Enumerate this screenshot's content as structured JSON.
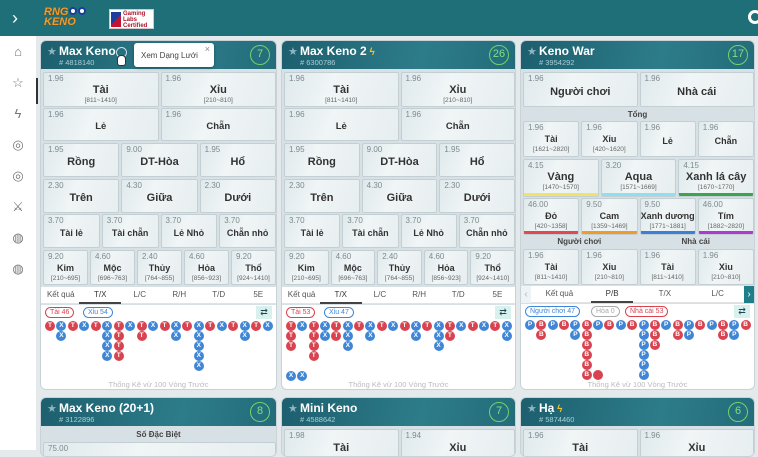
{
  "header": {
    "expand_icon": "chevron-right-icon",
    "logo_text": "RNG KENO",
    "cert_text": "Gaming Labs Certified"
  },
  "sidebar": {
    "items": [
      {
        "icon": "home-icon",
        "g": "⌂"
      },
      {
        "icon": "star-icon",
        "g": "☆"
      },
      {
        "icon": "bolt-icon",
        "g": "ϟ"
      },
      {
        "icon": "keno-20-icon",
        "g": "◎"
      },
      {
        "icon": "keno-40-icon",
        "g": "◎"
      },
      {
        "icon": "swords-icon",
        "g": "⚔"
      },
      {
        "icon": "keno-2-icon",
        "g": "◍"
      },
      {
        "icon": "keno-20plus-icon",
        "g": "◍"
      }
    ]
  },
  "tooltip": {
    "text": "Xem Dạng Lưới",
    "close": "×"
  },
  "colors": {
    "tai": "#d9434f",
    "xiu": "#3f86d6",
    "yellow": "#f0e26a",
    "aqua": "#8fe0ec",
    "green": "#3aa54a",
    "red": "#e04a4a",
    "orange": "#f09a2a",
    "blue": "#3a7fd8",
    "purple": "#b03ad0"
  },
  "cards": [
    {
      "title": "Max Keno",
      "id": "# 4818140",
      "timer": "7",
      "bolt": false,
      "rows": [
        [
          {
            "o": "1.96",
            "l": "Tài",
            "r": "[811~1410]"
          },
          {
            "o": "1.96",
            "l": "Xỉu",
            "r": "[210~810]"
          }
        ],
        [
          {
            "o": "1.96",
            "l": "Lẻ"
          },
          {
            "o": "1.96",
            "l": "Chẵn"
          }
        ],
        [
          {
            "o": "1.95",
            "l": "Rồng"
          },
          {
            "o": "9.00",
            "l": "DT-Hòa"
          },
          {
            "o": "1.95",
            "l": "Hổ"
          }
        ],
        [
          {
            "o": "2.30",
            "l": "Trên"
          },
          {
            "o": "4.30",
            "l": "Giữa"
          },
          {
            "o": "2.30",
            "l": "Dưới"
          }
        ],
        [
          {
            "o": "3.70",
            "l": "Tài lẻ"
          },
          {
            "o": "3.70",
            "l": "Tài chẵn"
          },
          {
            "o": "3.70",
            "l": "Lẻ Nhỏ"
          },
          {
            "o": "3.70",
            "l": "Chẵn nhỏ"
          }
        ],
        [
          {
            "o": "9.20",
            "l": "Kim",
            "r": "[210~695]"
          },
          {
            "o": "4.60",
            "l": "Mộc",
            "r": "[696~763]"
          },
          {
            "o": "2.40",
            "l": "Thủy",
            "r": "[764~855]"
          },
          {
            "o": "4.60",
            "l": "Hỏa",
            "r": "[856~923]"
          },
          {
            "o": "9.20",
            "l": "Thổ",
            "r": "[924~1410]"
          }
        ]
      ],
      "tabs": [
        "Kết quả",
        "T/X",
        "L/C",
        "R/H",
        "T/D",
        "5E"
      ],
      "active_tab": 1,
      "pills": [
        {
          "t": "Tài 46",
          "c": "tai"
        },
        {
          "t": "Xỉu 54",
          "c": "xiu"
        }
      ],
      "beads": [
        "T",
        "XX",
        "T",
        "X",
        "T",
        "XXXX",
        "TTTT",
        "X",
        "TT",
        "X",
        "T",
        "XX",
        "T",
        "XXXXX",
        "T",
        "X",
        "T",
        "XX",
        "T",
        "X"
      ],
      "extra": [],
      "footer": "Thống Kê vừ 100 Vòng Trước"
    },
    {
      "title": "Max Keno 2",
      "id": "# 6300786",
      "timer": "26",
      "bolt": true,
      "rows": [
        [
          {
            "o": "1.96",
            "l": "Tài",
            "r": "[811~1410]"
          },
          {
            "o": "1.96",
            "l": "Xỉu",
            "r": "[210~810]"
          }
        ],
        [
          {
            "o": "1.96",
            "l": "Lẻ"
          },
          {
            "o": "1.96",
            "l": "Chẵn"
          }
        ],
        [
          {
            "o": "1.95",
            "l": "Rồng"
          },
          {
            "o": "9.00",
            "l": "DT-Hòa"
          },
          {
            "o": "1.95",
            "l": "Hổ"
          }
        ],
        [
          {
            "o": "2.30",
            "l": "Trên"
          },
          {
            "o": "4.30",
            "l": "Giữa"
          },
          {
            "o": "2.30",
            "l": "Dưới"
          }
        ],
        [
          {
            "o": "3.70",
            "l": "Tài lẻ"
          },
          {
            "o": "3.70",
            "l": "Tài chẵn"
          },
          {
            "o": "3.70",
            "l": "Lẻ Nhỏ"
          },
          {
            "o": "3.70",
            "l": "Chẵn nhỏ"
          }
        ],
        [
          {
            "o": "9.20",
            "l": "Kim",
            "r": "[210~695]"
          },
          {
            "o": "4.60",
            "l": "Mộc",
            "r": "[696~763]"
          },
          {
            "o": "2.40",
            "l": "Thủy",
            "r": "[764~855]"
          },
          {
            "o": "4.60",
            "l": "Hỏa",
            "r": "[856~923]"
          },
          {
            "o": "9.20",
            "l": "Thổ",
            "r": "[924~1410]"
          }
        ]
      ],
      "tabs": [
        "Kết quả",
        "T/X",
        "L/C",
        "R/H",
        "T/D",
        "5E"
      ],
      "active_tab": 1,
      "pills": [
        {
          "t": "Tài 53",
          "c": "tai"
        },
        {
          "t": "Xỉu 47",
          "c": "xiu"
        }
      ],
      "beads": [
        "TTT",
        "X",
        "TTTT",
        "XX",
        "TT",
        "XXX",
        "T",
        "XX",
        "T",
        "X",
        "T",
        "XX",
        "T",
        "XXX",
        "TT",
        "X",
        "T",
        "X",
        "T",
        "XX"
      ],
      "extra": [
        "X",
        "X"
      ],
      "footer": "Thống Kê vừ 100 Vòng Trước"
    },
    {
      "title": "Keno War",
      "id": "# 3954292",
      "timer": "17",
      "bolt": false,
      "top": [
        {
          "o": "1.96",
          "l": "Người chơi"
        },
        {
          "o": "1.96",
          "l": "Nhà cái"
        }
      ],
      "tong_label": "Tổng",
      "tong": [
        {
          "o": "1.96",
          "l": "Tài",
          "r": "[1621~2820]"
        },
        {
          "o": "1.96",
          "l": "Xỉu",
          "r": "[420~1620]"
        },
        {
          "o": "1.96",
          "l": "Lẻ"
        },
        {
          "o": "1.96",
          "l": "Chẵn"
        }
      ],
      "colors3": [
        {
          "o": "4.15",
          "l": "Vàng",
          "r": "[1470~1570]",
          "c": "yellow"
        },
        {
          "o": "3.20",
          "l": "Aqua",
          "r": "[1571~1669]",
          "c": "aqua"
        },
        {
          "o": "4.15",
          "l": "Xanh lá cây",
          "r": "[1670~1770]",
          "c": "green"
        }
      ],
      "colors4": [
        {
          "o": "46.00",
          "l": "Đỏ",
          "r": "[420~1358]",
          "c": "red"
        },
        {
          "o": "9.50",
          "l": "Cam",
          "r": "[1359~1469]",
          "c": "orange"
        },
        {
          "o": "9.50",
          "l": "Xanh dương",
          "r": "[1771~1881]",
          "c": "blue"
        },
        {
          "o": "46.00",
          "l": "Tím",
          "r": "[1882~2820]",
          "c": "purple"
        }
      ],
      "player_label": "Người chơi",
      "banker_label": "Nhà cái",
      "sides": [
        {
          "o": "1.96",
          "l": "Tài",
          "r": "[811~1410]"
        },
        {
          "o": "1.96",
          "l": "Xỉu",
          "r": "[210~810]"
        },
        {
          "o": "1.96",
          "l": "Tài",
          "r": "[811~1410]"
        },
        {
          "o": "1.96",
          "l": "Xỉu",
          "r": "[210~810]"
        }
      ],
      "tabs": [
        "Kết quả",
        "P/B",
        "T/X",
        "L/C"
      ],
      "active_tab": 1,
      "pills": [
        {
          "t": "Người chơi 47",
          "c": "xiu"
        },
        {
          "t": "Hòa 0",
          "c": "grey"
        },
        {
          "t": "Nhà cái 53",
          "c": "tai"
        }
      ],
      "beads": [
        "P",
        "BB",
        "P",
        "B",
        "PP",
        "BBBBBB",
        "P",
        "B",
        "P",
        "B",
        "PPPPPP",
        "BBB",
        "P",
        "BB",
        "PP",
        "B",
        "P",
        "BB",
        "PP",
        "B"
      ],
      "extra": [],
      "footer": "Thống Kê vừ 100 Vòng Trước"
    }
  ],
  "bottom_cards": [
    {
      "title": "Max Keno (20+1)",
      "id": "# 3122896",
      "timer": "8",
      "bolt": false,
      "section": "Số Đặc Biệt",
      "first_odds": "75.00"
    },
    {
      "title": "Mini Keno",
      "id": "# 4588642",
      "timer": "7",
      "bolt": false,
      "cells": [
        {
          "o": "1.98",
          "l": "Tài"
        },
        {
          "o": "1.94",
          "l": "Xỉu"
        }
      ]
    },
    {
      "title": "Hạ",
      "id": "# 5874460",
      "timer": "6",
      "bolt": true,
      "cells": [
        {
          "o": "1.96",
          "l": "Tài"
        },
        {
          "o": "1.96",
          "l": "Xỉu"
        }
      ]
    }
  ]
}
